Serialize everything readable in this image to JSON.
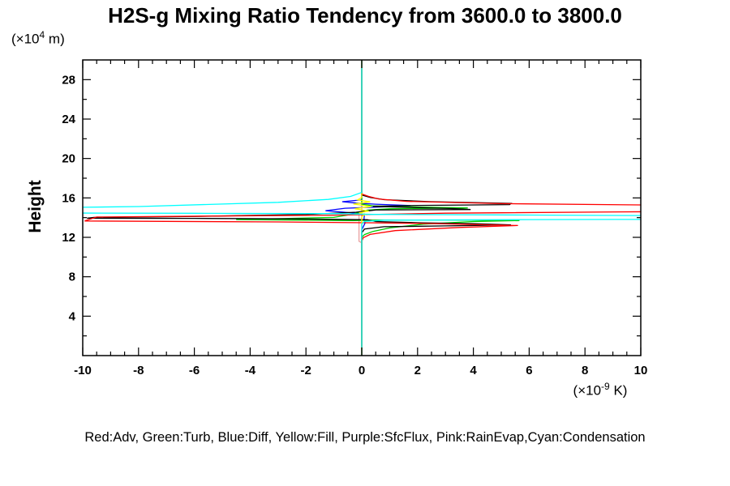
{
  "title": "H2S-g Mixing Ratio Tendency from 3600.0 to 3800.0",
  "ylabel": "Height",
  "y_unit": {
    "pre": "(×10",
    "sup": "4",
    "post": " m)"
  },
  "x_unit": {
    "pre": "(×10",
    "sup": "-9",
    "post": " K)"
  },
  "legend_text": "Red:Adv, Green:Turb, Blue:Diff, Yellow:Fill, Purple:SfcFlux, Pink:RainEvap,Cyan:Condensation",
  "chart_data": {
    "type": "line",
    "title": "H2S-g Mixing Ratio Tendency from 3600.0 to 3800.0",
    "xlabel": "(×10-9 K)",
    "ylabel": "Height (×10⁴ m)",
    "xlim": [
      -10,
      10
    ],
    "ylim": [
      0,
      30
    ],
    "x_major_step": 2,
    "x_minor_step": 0.5,
    "y_major_step": 4,
    "y_minor_step": 2,
    "grid": false,
    "axis_color": "#000000",
    "zero_line_color": "#00ffff",
    "series": [
      {
        "name": "SfcFlux",
        "color": "#a020f0",
        "points": [
          [
            0,
            30
          ],
          [
            0,
            0
          ]
        ]
      },
      {
        "name": "RainEvap",
        "color": "#e8a0a0",
        "points": [
          [
            0,
            30
          ],
          [
            0,
            14.5
          ],
          [
            -0.1,
            14.4
          ],
          [
            -0.1,
            11.6
          ],
          [
            0,
            11.45
          ],
          [
            0,
            0
          ]
        ]
      },
      {
        "name": "Diff",
        "color": "#0000ff",
        "points": [
          [
            0,
            30
          ],
          [
            0,
            15.8
          ],
          [
            -0.7,
            15.62
          ],
          [
            -0.2,
            15.48
          ],
          [
            0.5,
            15.36
          ],
          [
            1.75,
            15.22
          ],
          [
            0.8,
            15.1
          ],
          [
            -0.6,
            14.95
          ],
          [
            -1.3,
            14.7
          ],
          [
            -0.4,
            14.5
          ],
          [
            0.1,
            14.35
          ],
          [
            0.08,
            13.9
          ],
          [
            0.12,
            13.45
          ],
          [
            0.05,
            13.05
          ],
          [
            0,
            12.75
          ],
          [
            0,
            0
          ]
        ]
      },
      {
        "name": "Turb",
        "color": "#00cc00",
        "points": [
          [
            0,
            30
          ],
          [
            0,
            15.35
          ],
          [
            0.4,
            15.2
          ],
          [
            2.2,
            15.06
          ],
          [
            3.8,
            14.98
          ],
          [
            1,
            14.9
          ],
          [
            0.2,
            14.76
          ],
          [
            -0.3,
            14.36
          ],
          [
            -1,
            14.02
          ],
          [
            -4.5,
            13.8
          ],
          [
            -2,
            13.74
          ],
          [
            -0.3,
            13.7
          ],
          [
            0.5,
            13.76
          ],
          [
            3,
            13.76
          ],
          [
            5.65,
            13.7
          ],
          [
            4,
            13.6
          ],
          [
            2.2,
            13.34
          ],
          [
            1,
            12.95
          ],
          [
            0.4,
            12.6
          ],
          [
            0.1,
            12.28
          ],
          [
            0,
            12.0
          ],
          [
            0,
            0
          ]
        ]
      },
      {
        "name": "Black",
        "color": "#000000",
        "points": [
          [
            0,
            30
          ],
          [
            0,
            16.3
          ],
          [
            0.3,
            16.05
          ],
          [
            0.8,
            15.82
          ],
          [
            2.5,
            15.62
          ],
          [
            5.35,
            15.44
          ],
          [
            5.3,
            15.32
          ],
          [
            2,
            15.24
          ],
          [
            0.4,
            15.14
          ],
          [
            3.3,
            14.92
          ],
          [
            3.9,
            14.82
          ],
          [
            0.5,
            14.78
          ],
          [
            -0.2,
            14.55
          ],
          [
            -2,
            14.32
          ],
          [
            -6,
            14.12
          ],
          [
            -9.6,
            14.02
          ],
          [
            -9.85,
            13.94
          ],
          [
            -6,
            13.92
          ],
          [
            -2.5,
            13.87
          ],
          [
            0.2,
            13.78
          ],
          [
            0.5,
            13.6
          ],
          [
            2,
            13.48
          ],
          [
            4,
            13.38
          ],
          [
            5.35,
            13.26
          ],
          [
            3,
            13.16
          ],
          [
            0.8,
            13.08
          ],
          [
            0.1,
            12.85
          ],
          [
            0,
            12.45
          ],
          [
            0,
            0
          ]
        ]
      },
      {
        "name": "Adv",
        "color": "#ff0000",
        "points": [
          [
            0,
            30
          ],
          [
            0,
            16.4
          ],
          [
            0.25,
            16.15
          ],
          [
            0.6,
            15.9
          ],
          [
            1.6,
            15.65
          ],
          [
            5,
            15.42
          ],
          [
            14,
            15.18
          ],
          [
            17,
            15.1
          ],
          [
            17,
            14.75
          ],
          [
            14,
            14.68
          ],
          [
            3,
            14.45
          ],
          [
            -1,
            14.25
          ],
          [
            -9.5,
            14.06
          ],
          [
            -9.93,
            13.66
          ],
          [
            -3,
            13.56
          ],
          [
            0.2,
            13.48
          ],
          [
            2.5,
            13.4
          ],
          [
            5.6,
            13.2
          ],
          [
            3.5,
            13.0
          ],
          [
            1.2,
            12.68
          ],
          [
            0.3,
            12.3
          ],
          [
            0.05,
            11.95
          ],
          [
            0,
            11.6
          ],
          [
            0,
            0
          ]
        ]
      },
      {
        "name": "Fill",
        "color": "#ffff00",
        "points": [
          [
            0,
            30
          ],
          [
            0,
            16.05
          ],
          [
            -0.15,
            15.8
          ],
          [
            0.3,
            15.6
          ],
          [
            -0.3,
            15.38
          ],
          [
            0.35,
            15.12
          ],
          [
            -0.25,
            14.9
          ],
          [
            0.25,
            14.66
          ],
          [
            -0.1,
            14.48
          ],
          [
            0.12,
            14.3
          ],
          [
            0,
            14.12
          ],
          [
            0,
            0
          ]
        ]
      },
      {
        "name": "Condensation",
        "color": "#00ffff",
        "points": [
          [
            0,
            30
          ],
          [
            0,
            16.55
          ],
          [
            -0.4,
            16.15
          ],
          [
            -1.2,
            15.85
          ],
          [
            -3,
            15.55
          ],
          [
            -8,
            15.12
          ],
          [
            -14,
            14.9
          ],
          [
            -17,
            14.84
          ],
          [
            -17,
            14.5
          ],
          [
            -14,
            14.48
          ],
          [
            -6,
            14.44
          ],
          [
            -0.8,
            14.4
          ],
          [
            0.4,
            14.33
          ],
          [
            6,
            14.26
          ],
          [
            14,
            14.15
          ],
          [
            17,
            14.12
          ],
          [
            17,
            13.86
          ],
          [
            14,
            13.84
          ],
          [
            6,
            13.8
          ],
          [
            0.8,
            13.74
          ],
          [
            0.1,
            13.62
          ],
          [
            0,
            13.35
          ],
          [
            0,
            0
          ]
        ]
      }
    ],
    "y_tick_labels": [
      "4",
      "8",
      "12",
      "16",
      "20",
      "24",
      "28"
    ],
    "x_tick_labels": [
      "-10",
      "-8",
      "-6",
      "-4",
      "-2",
      "0",
      "2",
      "4",
      "6",
      "8",
      "10"
    ]
  }
}
